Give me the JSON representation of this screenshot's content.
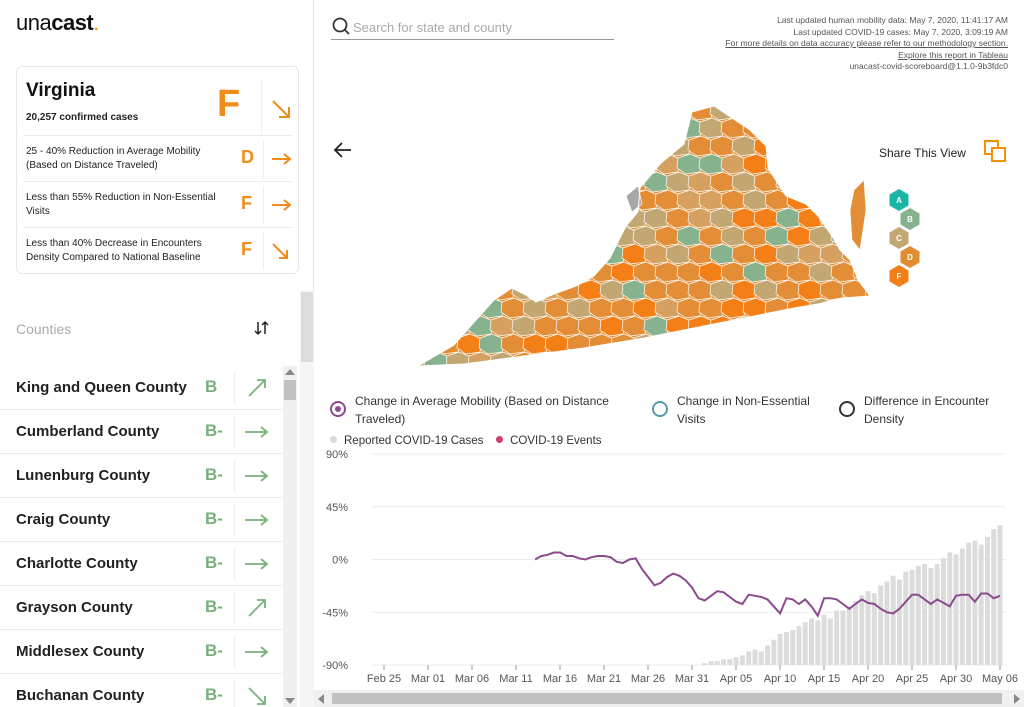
{
  "brand": {
    "name_light": "una",
    "name_bold": "cast",
    "dot": ".",
    "accent": "#f39200"
  },
  "state_card": {
    "name": "Virginia",
    "cases": "20,257 confirmed cases",
    "overall_grade": "F",
    "overall_trend": "down",
    "metrics": [
      {
        "label": "25 - 40% Reduction in Average Mobility (Based on Distance Traveled)",
        "grade": "D",
        "trend": "flat"
      },
      {
        "label": "Less than 55% Reduction in Non-Essential Visits",
        "grade": "F",
        "trend": "flat"
      },
      {
        "label": "Less than 40% Decrease in Encounters Density Compared to National Baseline",
        "grade": "F",
        "trend": "down"
      }
    ]
  },
  "counties": {
    "title": "Counties",
    "items": [
      {
        "name": "King and Queen County",
        "grade": "B",
        "trend": "up"
      },
      {
        "name": "Cumberland County",
        "grade": "B-",
        "trend": "flat"
      },
      {
        "name": "Lunenburg County",
        "grade": "B-",
        "trend": "flat"
      },
      {
        "name": "Craig County",
        "grade": "B-",
        "trend": "flat"
      },
      {
        "name": "Charlotte County",
        "grade": "B-",
        "trend": "flat"
      },
      {
        "name": "Grayson County",
        "grade": "B-",
        "trend": "up"
      },
      {
        "name": "Middlesex County",
        "grade": "B-",
        "trend": "flat"
      },
      {
        "name": "Buchanan County",
        "grade": "B-",
        "trend": "down"
      }
    ]
  },
  "search": {
    "placeholder": "Search for state and county"
  },
  "meta": {
    "mobility_updated": "Last updated human mobility data: May 7, 2020, 11:41:17 AM",
    "covid_updated": "Last updated COVID-19 cases: May 7, 2020, 3:09:19 AM",
    "methodology_link": "For more details on data accuracy please refer to our methodology section.",
    "tableau_link": "Explore this report in Tableau",
    "version": "unacast-covid-scoreboard@1.1.0-9b3fdc0"
  },
  "share": {
    "label": "Share This View"
  },
  "grade_legend": [
    {
      "grade": "A",
      "color": "#1bb5a8"
    },
    {
      "grade": "B",
      "color": "#86b38e"
    },
    {
      "grade": "C",
      "color": "#c2a773"
    },
    {
      "grade": "D",
      "color": "#e08c2f"
    },
    {
      "grade": "F",
      "color": "#f57f17"
    }
  ],
  "metric_legend": [
    {
      "label": "Change in Average Mobility (Based on Distance Traveled)",
      "selected": true,
      "color": "#8b4b8f"
    },
    {
      "label": "Change in Non-Essential Visits",
      "selected": false,
      "color": "#5a9aa8"
    },
    {
      "label": "Difference in Encounter Density",
      "selected": false,
      "color": "#333333"
    }
  ],
  "chart_legend": {
    "cases_label": "Reported COVID-19 Cases",
    "events_label": "COVID-19 Events",
    "cases_color": "#d9d9d9",
    "events_color": "#d43c6b"
  },
  "chart_data": {
    "type": "line",
    "x_ticks": [
      "Feb 25",
      "Mar 01",
      "Mar 06",
      "Mar 11",
      "Mar 16",
      "Mar 21",
      "Mar 26",
      "Mar 31",
      "Apr 05",
      "Apr 10",
      "Apr 15",
      "Apr 20",
      "Apr 25",
      "Apr 30",
      "May 06"
    ],
    "y_ticks": [
      "90%",
      "45%",
      "0%",
      "-45%",
      "-90%"
    ],
    "ylim": [
      -90,
      90
    ],
    "start_date": "Feb 24",
    "line_color": "#8b4b8f",
    "mobility": [
      0,
      3,
      4,
      6,
      6,
      3,
      3,
      1,
      0,
      2,
      3,
      3,
      2,
      -2,
      -3,
      0,
      1,
      -8,
      -15,
      -22,
      -20,
      -15,
      -12,
      -14,
      -18,
      -24,
      -33,
      -35,
      -31,
      -27,
      -28,
      -32,
      -36,
      -38,
      -30,
      -31,
      -32,
      -34,
      -40,
      -46,
      -33,
      -34,
      -38,
      -34,
      -40,
      -48,
      -33,
      -33,
      -34,
      -38,
      -42,
      -38,
      -34,
      -37,
      -38,
      -42,
      -45,
      -46,
      -42,
      -36,
      -30,
      -30,
      -34,
      -38,
      -34,
      -37,
      -40,
      -31,
      -30,
      -30,
      -36,
      -29,
      -29,
      -33,
      -31
    ],
    "cases": [
      0,
      0,
      0,
      0,
      0,
      0,
      0,
      0,
      0,
      0,
      0,
      0,
      0,
      0,
      0,
      0,
      0,
      0,
      0,
      0,
      0,
      0,
      0,
      0,
      0,
      0,
      0,
      0,
      0,
      0,
      0,
      0,
      0,
      0,
      0,
      0,
      0,
      0,
      0,
      0,
      0,
      0,
      0,
      0,
      0,
      0,
      0,
      0,
      0,
      0,
      0,
      0,
      1,
      2,
      2,
      3,
      3,
      4,
      5,
      7,
      8,
      7,
      10,
      13,
      16,
      17,
      18,
      20,
      22,
      24,
      23,
      26,
      24,
      28,
      28,
      30,
      33,
      36,
      38,
      37,
      41,
      43,
      46,
      44,
      48,
      49,
      51,
      52,
      50,
      52,
      55,
      58,
      57,
      60,
      63,
      64,
      62,
      66,
      70,
      72
    ],
    "events": [
      0,
      0,
      0,
      0,
      0,
      0,
      0,
      0,
      0,
      0,
      0,
      0,
      0,
      0,
      0,
      0,
      0,
      0,
      0,
      0,
      0,
      0,
      0,
      0,
      0,
      0,
      0,
      0,
      0,
      0,
      0,
      0,
      0,
      0,
      0,
      0,
      0,
      0,
      0,
      0,
      0,
      0,
      0,
      0,
      0,
      0,
      0,
      0,
      0,
      0,
      0,
      0,
      0,
      0,
      0,
      0,
      0,
      0,
      0,
      0,
      0,
      0,
      0,
      0,
      0,
      0,
      0,
      0,
      0,
      0,
      0,
      0,
      0,
      0,
      0
    ]
  }
}
